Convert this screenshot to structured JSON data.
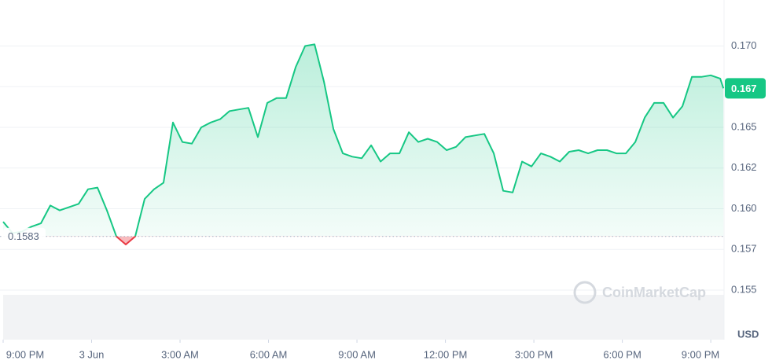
{
  "chart_data": {
    "type": "line",
    "x": [
      0,
      0.32,
      0.64,
      0.96,
      1.28,
      1.6,
      1.92,
      2.24,
      2.56,
      2.88,
      3.2,
      3.52,
      3.84,
      4.16,
      4.48,
      4.8,
      5.12,
      5.44,
      5.76,
      6.08,
      6.4,
      6.72,
      7.04,
      7.36,
      7.68,
      8,
      8.32,
      8.64,
      8.96,
      9.28,
      9.6,
      9.92,
      10.24,
      10.56,
      10.88,
      11.2,
      11.52,
      11.84,
      12.16,
      12.48,
      12.8,
      13.12,
      13.44,
      13.76,
      14.08,
      14.4,
      14.72,
      15.04,
      15.36,
      15.68,
      16,
      16.32,
      16.64,
      16.96,
      17.28,
      17.6,
      17.92,
      18.24,
      18.56,
      18.88,
      19.2,
      19.52,
      19.84,
      20.16,
      20.48,
      20.8,
      21.12,
      21.44,
      21.76,
      22.08,
      22.4,
      22.72,
      23.04,
      23.36,
      23.68,
      24,
      24.32,
      24.43
    ],
    "series": [
      {
        "name": "USD",
        "color": "#16c784",
        "below_color": "#ea3943",
        "values": [
          0.1592,
          0.1585,
          0.1586,
          0.1589,
          0.1591,
          0.1602,
          0.1599,
          0.1601,
          0.1603,
          0.1612,
          0.1613,
          0.1599,
          0.1583,
          0.1578,
          0.1583,
          0.1606,
          0.1612,
          0.1616,
          0.1653,
          0.1641,
          0.164,
          0.165,
          0.1653,
          0.1655,
          0.166,
          0.1661,
          0.1662,
          0.1644,
          0.1665,
          0.1668,
          0.1668,
          0.1687,
          0.17,
          0.1701,
          0.1678,
          0.1649,
          0.1634,
          0.1632,
          0.1631,
          0.1639,
          0.1629,
          0.1634,
          0.1634,
          0.1647,
          0.1641,
          0.1643,
          0.1641,
          0.1636,
          0.1638,
          0.1644,
          0.1645,
          0.1646,
          0.1634,
          0.1611,
          0.161,
          0.1629,
          0.1626,
          0.1634,
          0.1632,
          0.1629,
          0.1635,
          0.1636,
          0.1634,
          0.1636,
          0.1636,
          0.1634,
          0.1634,
          0.1641,
          0.1656,
          0.1665,
          0.1665,
          0.1656,
          0.1663,
          0.1681,
          0.1681,
          0.1682,
          0.168,
          0.1674
        ]
      }
    ],
    "baseline": 0.1583,
    "last_value_label": "0.167",
    "y_unit": "USD",
    "watermark": "CoinMarketCap",
    "xlim": [
      0,
      24.45
    ],
    "xticks": [
      {
        "value": 0,
        "label": "9:00 PM"
      },
      {
        "value": 3,
        "label": "3 Jun"
      },
      {
        "value": 6,
        "label": "3:00 AM"
      },
      {
        "value": 9,
        "label": "6:00 AM"
      },
      {
        "value": 12,
        "label": "9:00 AM"
      },
      {
        "value": 15,
        "label": "12:00 PM"
      },
      {
        "value": 18,
        "label": "3:00 PM"
      },
      {
        "value": 21,
        "label": "6:00 PM"
      },
      {
        "value": 24,
        "label": "9:00 PM"
      }
    ],
    "ylim": [
      0.152,
      0.1725
    ],
    "yticks": [
      {
        "value": 0.155,
        "label": "0.155"
      },
      {
        "value": 0.1575,
        "label": "0.157"
      },
      {
        "value": 0.16,
        "label": "0.160"
      },
      {
        "value": 0.1625,
        "label": "0.162"
      },
      {
        "value": 0.165,
        "label": "0.165"
      },
      {
        "value": 0.1675,
        "label": "0.167"
      },
      {
        "value": 0.17,
        "label": "0.170"
      }
    ],
    "grid": true
  }
}
